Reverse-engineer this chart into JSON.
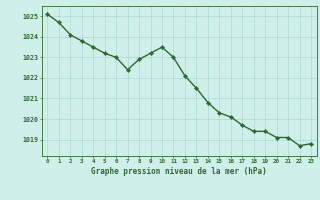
{
  "x": [
    0,
    1,
    2,
    3,
    4,
    5,
    6,
    7,
    8,
    9,
    10,
    11,
    12,
    13,
    14,
    15,
    16,
    17,
    18,
    19,
    20,
    21,
    22,
    23
  ],
  "y": [
    1025.1,
    1024.7,
    1024.1,
    1023.8,
    1023.5,
    1023.2,
    1023.0,
    1022.4,
    1022.9,
    1023.2,
    1023.5,
    1023.0,
    1022.1,
    1021.5,
    1020.8,
    1020.3,
    1020.1,
    1019.7,
    1019.4,
    1019.4,
    1019.1,
    1019.1,
    1018.7,
    1018.8
  ],
  "line_color": "#2d6a2d",
  "marker": "D",
  "marker_size": 2.2,
  "bg_color": "#cff0ea",
  "grid_color": "#aad8d0",
  "xlabel": "Graphe pression niveau de la mer (hPa)",
  "xlabel_color": "#2d6a2d",
  "tick_color": "#2d6a2d",
  "ylim_min": 1018.2,
  "ylim_max": 1025.5,
  "yticks": [
    1019,
    1020,
    1021,
    1022,
    1023,
    1024,
    1025
  ],
  "xticks": [
    0,
    1,
    2,
    3,
    4,
    5,
    6,
    7,
    8,
    9,
    10,
    11,
    12,
    13,
    14,
    15,
    16,
    17,
    18,
    19,
    20,
    21,
    22,
    23
  ],
  "spine_color": "#2d6a2d",
  "linewidth": 1.0,
  "figsize": [
    3.2,
    2.0
  ],
  "dpi": 100
}
